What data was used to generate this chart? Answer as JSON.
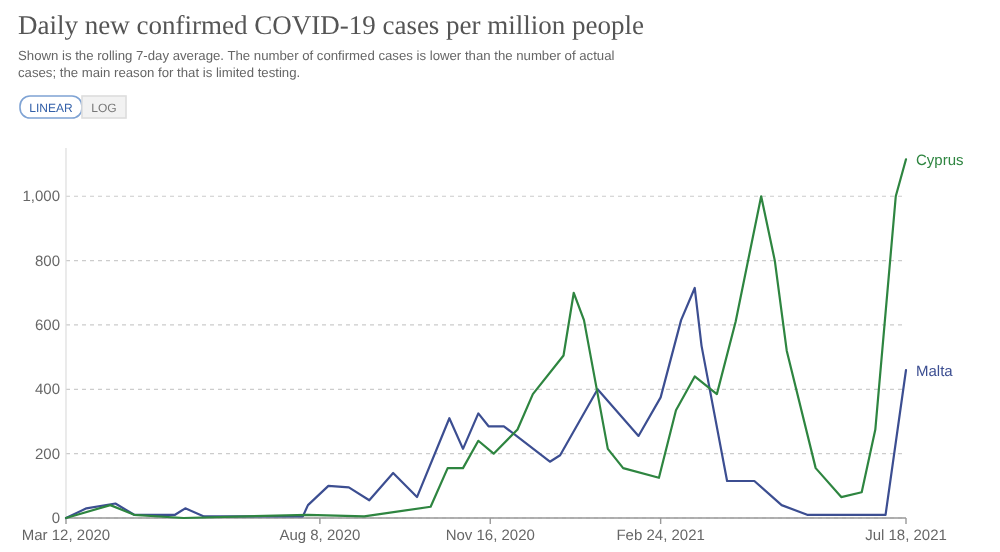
{
  "chart_data": {
    "type": "line",
    "title": "Daily new confirmed COVID-19 cases per million people",
    "subtitle": "Shown is the rolling 7-day average. The number of confirmed cases is lower than the number of actual cases; the main reason for that is limited testing.",
    "annotations": [
      "LINEAR",
      "LOG"
    ],
    "xlim": [
      "2020-03-12",
      "2021-07-18"
    ],
    "ylim": [
      0,
      1150
    ],
    "xticks": [
      {
        "value": "2020-03-12",
        "label": "Mar 12, 2020"
      },
      {
        "value": "2020-08-08",
        "label": "Aug 8, 2020"
      },
      {
        "value": "2020-11-16",
        "label": "Nov 16, 2020"
      },
      {
        "value": "2021-02-24",
        "label": "Feb 24, 2021"
      },
      {
        "value": "2021-07-18",
        "label": "Jul 18, 2021"
      }
    ],
    "yticks": [
      0,
      200,
      400,
      600,
      800,
      {
        "value": 1000,
        "label": "1,000"
      }
    ],
    "grid": "y",
    "legend": "right",
    "marker": "none",
    "line_style": "solid",
    "series": [
      {
        "name": "Malta",
        "color": "#3c4e91",
        "x": [
          "2020-03-12",
          "2020-03-24",
          "2020-04-10",
          "2020-04-21",
          "2020-05-15",
          "2020-05-21",
          "2020-06-01",
          "2020-07-29",
          "2020-08-01",
          "2020-08-13",
          "2020-08-25",
          "2020-09-06",
          "2020-09-20",
          "2020-10-04",
          "2020-10-23",
          "2020-10-31",
          "2020-11-09",
          "2020-11-15",
          "2020-11-24",
          "2020-12-21",
          "2020-12-27",
          "2021-01-18",
          "2021-02-11",
          "2021-02-24",
          "2021-03-08",
          "2021-03-16",
          "2021-03-20",
          "2021-04-04",
          "2021-04-20",
          "2021-05-06",
          "2021-05-21",
          "2021-07-06",
          "2021-07-18"
        ],
        "values": [
          0,
          30,
          45,
          10,
          10,
          30,
          5,
          5,
          40,
          100,
          95,
          55,
          140,
          65,
          310,
          215,
          325,
          285,
          285,
          175,
          195,
          400,
          255,
          375,
          615,
          715,
          535,
          115,
          115,
          40,
          10,
          10,
          460
        ]
      },
      {
        "name": "Cyprus",
        "color": "#2e8540",
        "x": [
          "2020-03-12",
          "2020-04-07",
          "2020-04-21",
          "2020-05-20",
          "2020-08-01",
          "2020-09-03",
          "2020-10-12",
          "2020-10-22",
          "2020-10-31",
          "2020-11-09",
          "2020-11-18",
          "2020-12-02",
          "2020-12-11",
          "2020-12-29",
          "2021-01-04",
          "2021-01-10",
          "2021-01-24",
          "2021-02-02",
          "2021-02-23",
          "2021-03-05",
          "2021-03-16",
          "2021-03-29",
          "2021-04-09",
          "2021-04-24",
          "2021-05-02",
          "2021-05-09",
          "2021-05-26",
          "2021-06-10",
          "2021-06-22",
          "2021-06-30",
          "2021-07-12",
          "2021-07-18"
        ],
        "values": [
          0,
          40,
          10,
          0,
          10,
          5,
          35,
          155,
          155,
          240,
          200,
          275,
          385,
          505,
          700,
          615,
          215,
          155,
          125,
          335,
          440,
          385,
          610,
          1000,
          800,
          520,
          155,
          65,
          80,
          275,
          1000,
          1115
        ]
      }
    ]
  }
}
